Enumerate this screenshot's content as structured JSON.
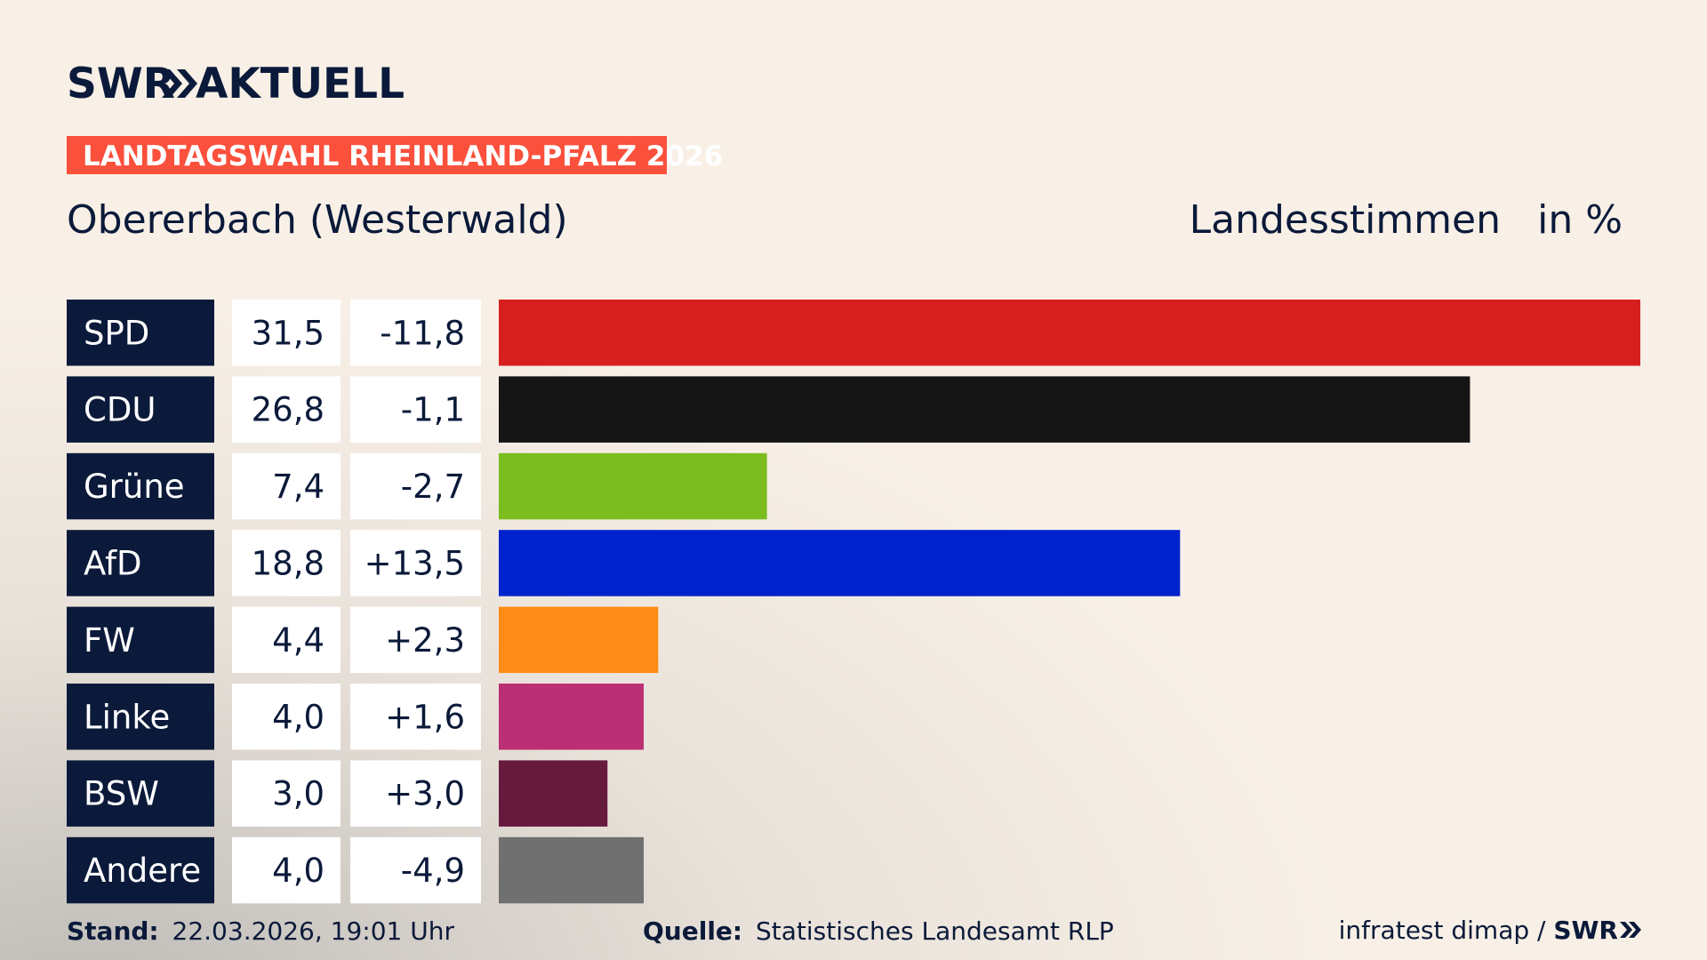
{
  "chart_data": {
    "type": "bar",
    "brand": "SWR",
    "brand_product": "AKTUELL",
    "badge": "LANDTAGSWAHL RHEINLAND-PFALZ 2026",
    "title": "Obererbach (Westerwald)",
    "measure": "Landesstimmen",
    "unit": "in %",
    "categories": [
      "SPD",
      "CDU",
      "Grüne",
      "AfD",
      "FW",
      "Linke",
      "BSW",
      "Andere"
    ],
    "values": [
      31.5,
      26.8,
      7.4,
      18.8,
      4.4,
      4.0,
      3.0,
      4.0
    ],
    "value_labels": [
      "31,5",
      "26,8",
      "7,4",
      "18,8",
      "4,4",
      "4,0",
      "3,0",
      "4,0"
    ],
    "changes": [
      -11.8,
      -1.1,
      -2.7,
      13.5,
      2.3,
      1.6,
      3.0,
      -4.9
    ],
    "change_labels": [
      "-11,8",
      "-1,1",
      "-2,7",
      "+13,5",
      "+2,3",
      "+1,6",
      "+3,0",
      "-4,9"
    ],
    "colors": [
      "#d81f20",
      "#151515",
      "#7bbc1e",
      "#0022cc",
      "#ff8c16",
      "#bb3075",
      "#661a3c",
      "#707070"
    ],
    "footer": {
      "stand_label": "Stand:",
      "stand": "22.03.2026, 19:01 Uhr",
      "source_label": "Quelle:",
      "source": "Statistisches Landesamt RLP",
      "credit": "infratest dimap / ",
      "credit_brand": "SWR"
    }
  }
}
